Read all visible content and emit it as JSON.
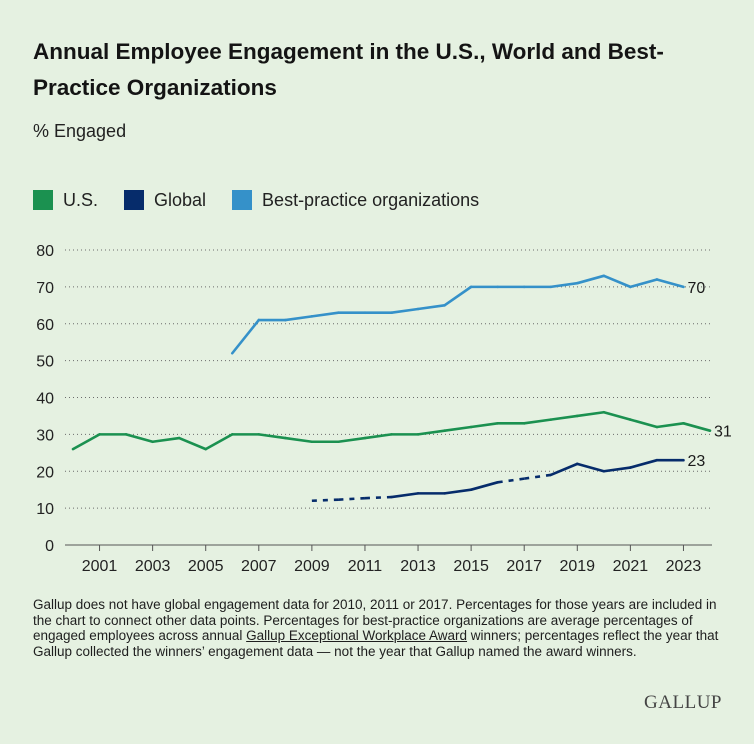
{
  "title": "Annual Employee Engagement in the U.S., World and Best-Practice Organizations",
  "subtitle": "% Engaged",
  "legend": {
    "us": "U.S.",
    "global": "Global",
    "best": "Best-practice organizations"
  },
  "colors": {
    "us": "#1b9150",
    "global": "#062c6b",
    "best": "#3591c9",
    "grid": "#444444",
    "text": "#222222"
  },
  "note": {
    "before": "Gallup does not have global engagement data for 2010, 2011 or 2017. Percentages for those years are included in the chart to connect other data points. Percentages for best-practice organizations are average percentages of engaged employees across annual ",
    "award": "Gallup Exceptional Workplace Award",
    "after": " winners; percentages reflect the year that Gallup collected the winners’ engagement data — not the year that Gallup named the award winners."
  },
  "logo": "GALLUP",
  "chart_data": {
    "type": "line",
    "title": "Annual Employee Engagement in the U.S., World and Best-Practice Organizations",
    "ylabel": "% Engaged",
    "xlabel": "",
    "xlim": [
      2000,
      2024
    ],
    "ylim": [
      0,
      80
    ],
    "yticks": [
      0,
      10,
      20,
      30,
      40,
      50,
      60,
      70,
      80
    ],
    "xticks": [
      2001,
      2003,
      2005,
      2007,
      2009,
      2011,
      2013,
      2015,
      2017,
      2019,
      2021,
      2023
    ],
    "grid": "horizontal-dotted",
    "legend_position": "top-left",
    "series": [
      {
        "key": "us",
        "name": "U.S.",
        "x": [
          2000,
          2001,
          2002,
          2003,
          2004,
          2005,
          2006,
          2007,
          2008,
          2009,
          2010,
          2011,
          2012,
          2013,
          2014,
          2015,
          2016,
          2017,
          2018,
          2019,
          2020,
          2021,
          2022,
          2023,
          2024
        ],
        "values": [
          26,
          30,
          30,
          28,
          29,
          26,
          30,
          30,
          29,
          28,
          28,
          29,
          30,
          30,
          31,
          32,
          33,
          33,
          34,
          35,
          36,
          34,
          32,
          33,
          31
        ],
        "end_label": "31"
      },
      {
        "key": "global",
        "name": "Global",
        "x": [
          2009,
          2010,
          2011,
          2012,
          2013,
          2014,
          2015,
          2016,
          2017,
          2018,
          2019,
          2020,
          2021,
          2022,
          2023
        ],
        "values": [
          12,
          12.3,
          12.7,
          13,
          14,
          14,
          15,
          17,
          18,
          19,
          22,
          20,
          21,
          23,
          23
        ],
        "dashed_segments": [
          [
            2009,
            2012
          ],
          [
            2016,
            2018
          ]
        ],
        "end_label": "23"
      },
      {
        "key": "best",
        "name": "Best-practice organizations",
        "x": [
          2006,
          2007,
          2008,
          2009,
          2010,
          2011,
          2012,
          2013,
          2014,
          2015,
          2016,
          2017,
          2018,
          2019,
          2020,
          2021,
          2022,
          2023
        ],
        "values": [
          52,
          61,
          61,
          62,
          63,
          63,
          63,
          64,
          65,
          70,
          70,
          70,
          70,
          71,
          73,
          70,
          72,
          70
        ],
        "end_label": "70"
      }
    ]
  }
}
